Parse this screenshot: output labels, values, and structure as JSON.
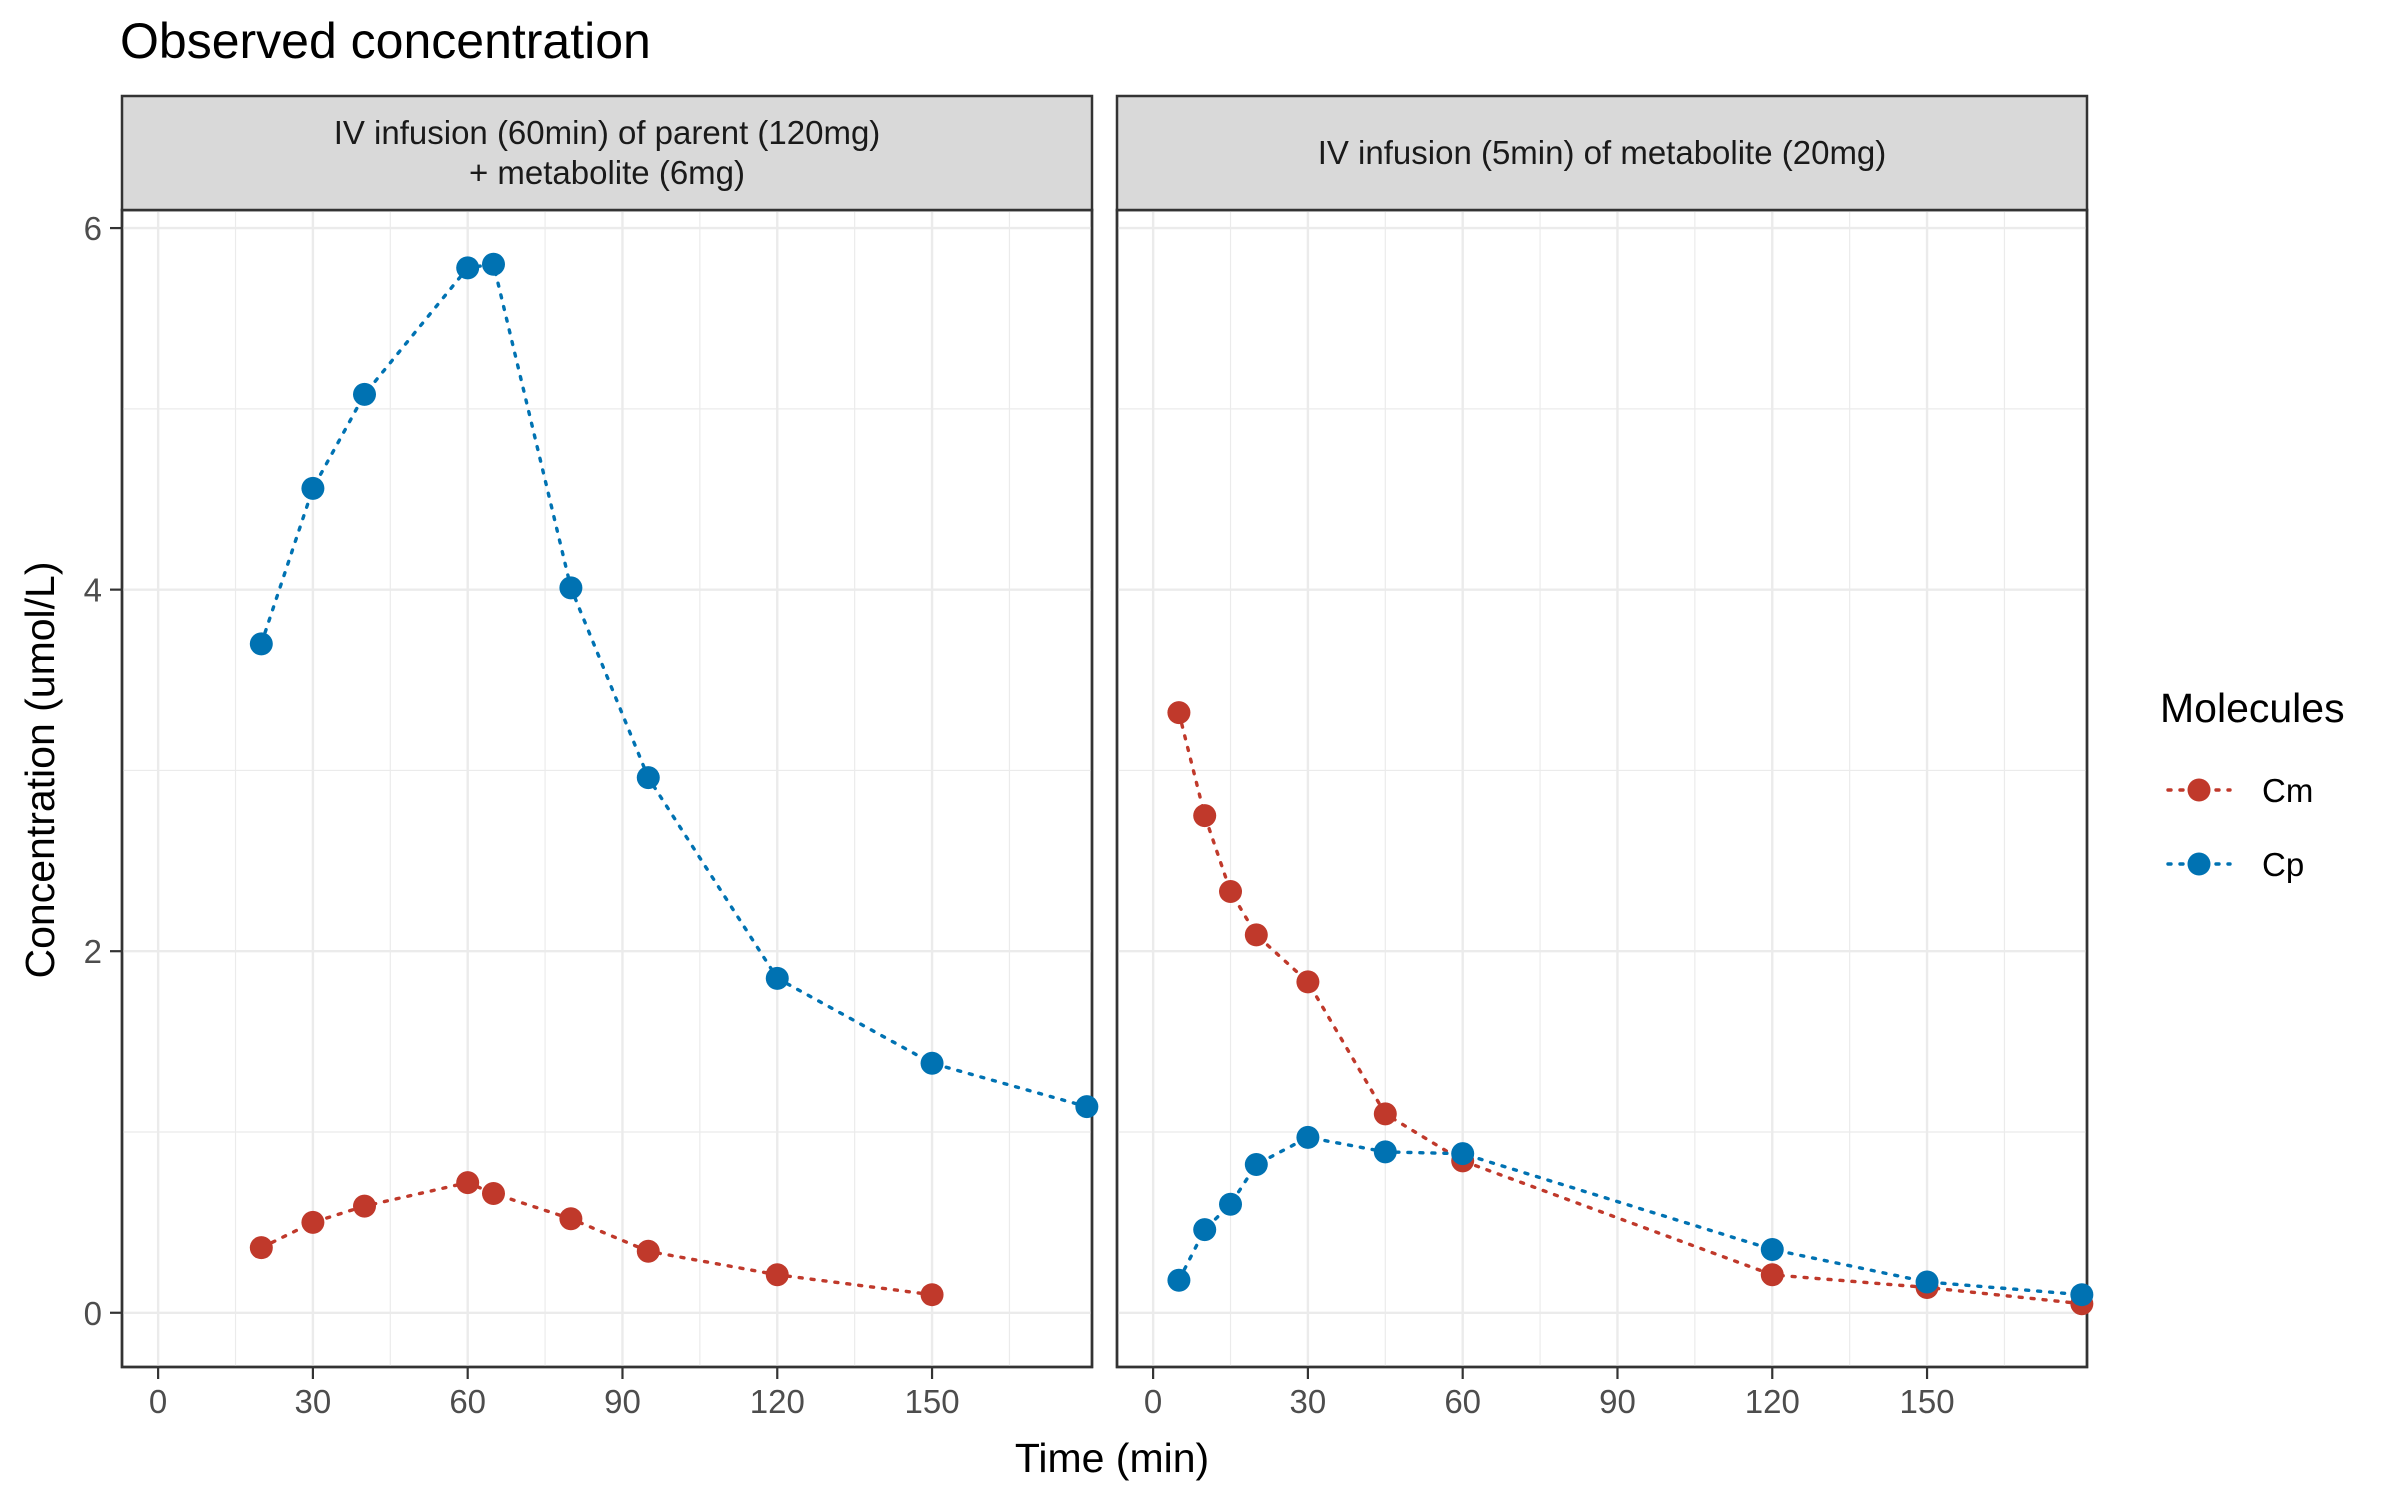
{
  "chart_data": {
    "type": "line",
    "title": "Observed concentration",
    "xlabel": "Time (min)",
    "ylabel": "Concentration (umol/L)",
    "xlim": [
      -7,
      181
    ],
    "ylim": [
      -0.3,
      6.1
    ],
    "x_ticks": [
      0,
      30,
      60,
      90,
      120,
      150
    ],
    "x_tick_labels": [
      "0",
      "30",
      "60",
      "90",
      "120",
      "150"
    ],
    "y_ticks": [
      0,
      2,
      4,
      6
    ],
    "y_tick_labels": [
      "0",
      "2",
      "4",
      "6"
    ],
    "grid": true,
    "legend": {
      "title": "Molecules",
      "position": "right",
      "entries": [
        {
          "name": "Cm",
          "color": "#c0392b"
        },
        {
          "name": "Cp",
          "color": "#0072b2"
        }
      ]
    },
    "panels": [
      {
        "strip": [
          "IV infusion (60min) of parent (120mg)",
          "+ metabolite (6mg)"
        ],
        "series": [
          {
            "name": "Cm",
            "color": "#c0392b",
            "x": [
              20,
              30,
              40,
              60,
              65,
              80,
              95,
              120,
              150
            ],
            "y": [
              0.36,
              0.5,
              0.59,
              0.72,
              0.66,
              0.52,
              0.34,
              0.21,
              0.1
            ]
          },
          {
            "name": "Cp",
            "color": "#0072b2",
            "x": [
              20,
              30,
              40,
              60,
              65,
              80,
              95,
              120,
              150,
              180
            ],
            "y": [
              3.7,
              4.56,
              5.08,
              5.78,
              5.8,
              4.01,
              2.96,
              1.85,
              1.38,
              1.14
            ]
          }
        ]
      },
      {
        "strip": [
          "IV infusion (5min) of metabolite (20mg)"
        ],
        "series": [
          {
            "name": "Cm",
            "color": "#c0392b",
            "x": [
              5,
              10,
              15,
              20,
              30,
              45,
              60,
              120,
              150,
              180
            ],
            "y": [
              3.32,
              2.75,
              2.33,
              2.09,
              1.83,
              1.1,
              0.84,
              0.21,
              0.14,
              0.05
            ]
          },
          {
            "name": "Cp",
            "color": "#0072b2",
            "x": [
              5,
              10,
              15,
              20,
              30,
              45,
              60,
              120,
              150,
              180
            ],
            "y": [
              0.18,
              0.46,
              0.6,
              0.82,
              0.97,
              0.89,
              0.88,
              0.35,
              0.17,
              0.1
            ]
          }
        ]
      }
    ]
  }
}
